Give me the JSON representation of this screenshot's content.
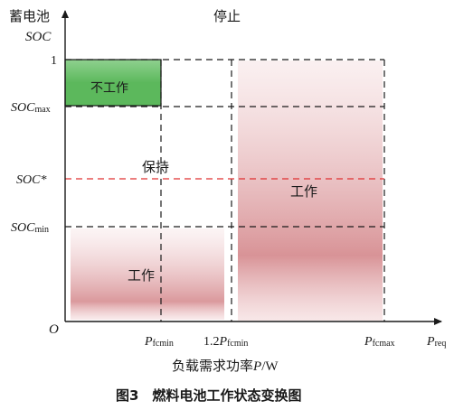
{
  "y_axis": {
    "title_line1": "蓄电池",
    "title_line2": "SOC",
    "tick_one": "1",
    "soc_max": {
      "main": "SOC",
      "sub": "max"
    },
    "soc_star": "SOC*",
    "soc_min": {
      "main": "SOC",
      "sub": "min"
    },
    "origin": "O"
  },
  "x_axis": {
    "p_fcmin": {
      "main": "P",
      "sub": "fcmin"
    },
    "p_12_fcmin": {
      "prefix": "1.2",
      "main": "P",
      "sub": "fcmin"
    },
    "p_fcmax": {
      "main": "P",
      "sub": "fcmax"
    },
    "p_req": {
      "main": "P",
      "sub": "req"
    },
    "title_prefix": "负载需求功率",
    "title_var": "P",
    "title_unit": "/W"
  },
  "regions": {
    "stop": "停止",
    "no_work": "不工作",
    "hold": "保持",
    "work_right": "工作",
    "work_left": "工作"
  },
  "caption": "图3　燃料电池工作状态变换图",
  "colors": {
    "green": "#5cb85c",
    "green_light": "#8fd18f",
    "pink": "#d4878b",
    "pink_light": "#f2d4d6",
    "red_dash": "#e03030",
    "axis": "#1a1a1a"
  }
}
